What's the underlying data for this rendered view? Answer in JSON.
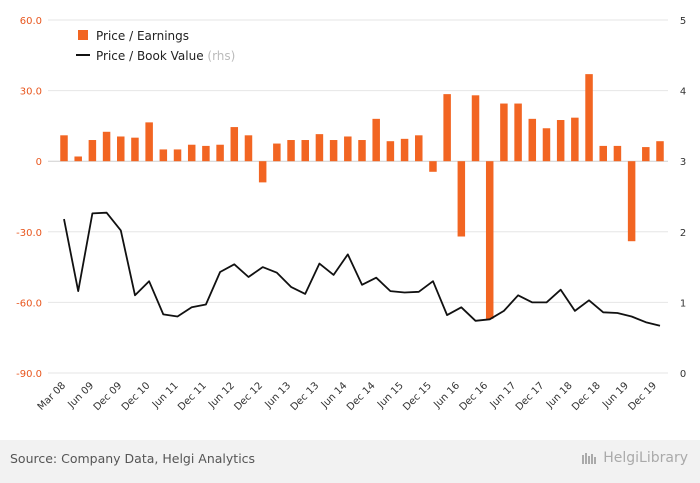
{
  "chart_data": {
    "type": "bar",
    "legend": {
      "bar_label": "Price / Earnings",
      "line_label": "Price / Book Value",
      "line_suffix": "(rhs)",
      "placement": "top-left"
    },
    "y_left": {
      "ticks": [
        "60.0",
        "30.0",
        "0",
        "-30.0",
        "-60.0",
        "-90.0"
      ],
      "values": [
        60,
        30,
        0,
        -30,
        -60,
        -90
      ],
      "ylim": [
        -90,
        60
      ]
    },
    "y_right": {
      "ticks": [
        "5",
        "4",
        "3",
        "2",
        "1",
        "0"
      ],
      "values": [
        5,
        4,
        3,
        2,
        1,
        0
      ],
      "ylim": [
        0,
        5
      ]
    },
    "x_tick_labels": [
      "Mar 08",
      "Jun 09",
      "Dec 09",
      "Dec 10",
      "Jun 11",
      "Dec 11",
      "Jun 12",
      "Dec 12",
      "Jun 13",
      "Dec 13",
      "Jun 14",
      "Dec 14",
      "Jun 15",
      "Dec 15",
      "Jun 16",
      "Dec 16",
      "Jun 17",
      "Dec 17",
      "Jun 18",
      "Dec 18",
      "Jun 19",
      "Dec 19"
    ],
    "series": [
      {
        "name": "Price / Earnings",
        "kind": "bar",
        "color": "#f26522",
        "values": [
          11,
          2,
          9,
          12.5,
          10.5,
          10,
          16.5,
          5,
          5,
          7,
          6.5,
          7,
          14.5,
          11,
          -9,
          7.5,
          9,
          9,
          11.5,
          9,
          10.5,
          9,
          18,
          8.5,
          9.5,
          11,
          -4.5,
          28.5,
          -32,
          28,
          -67,
          24.5,
          24.5,
          18,
          14,
          17.5,
          18.5,
          37,
          6.5,
          6.5,
          -34,
          6,
          8.5
        ]
      },
      {
        "name": "Price / Book Value",
        "kind": "line",
        "axis": "right",
        "color": "#111111",
        "values": [
          2.18,
          1.16,
          2.26,
          2.27,
          2.02,
          1.1,
          1.3,
          0.83,
          0.8,
          0.93,
          0.97,
          1.43,
          1.54,
          1.36,
          1.5,
          1.42,
          1.22,
          1.12,
          1.55,
          1.39,
          1.68,
          1.25,
          1.35,
          1.16,
          1.14,
          1.15,
          1.3,
          0.82,
          0.93,
          0.74,
          0.76,
          0.88,
          1.1,
          1.0,
          1.0,
          1.18,
          0.88,
          1.03,
          0.86,
          0.85,
          0.8,
          0.72,
          0.67
        ]
      }
    ]
  },
  "footer": {
    "source": "Source: Company Data, Helgi Analytics",
    "brand": "HelgiLibrary"
  }
}
